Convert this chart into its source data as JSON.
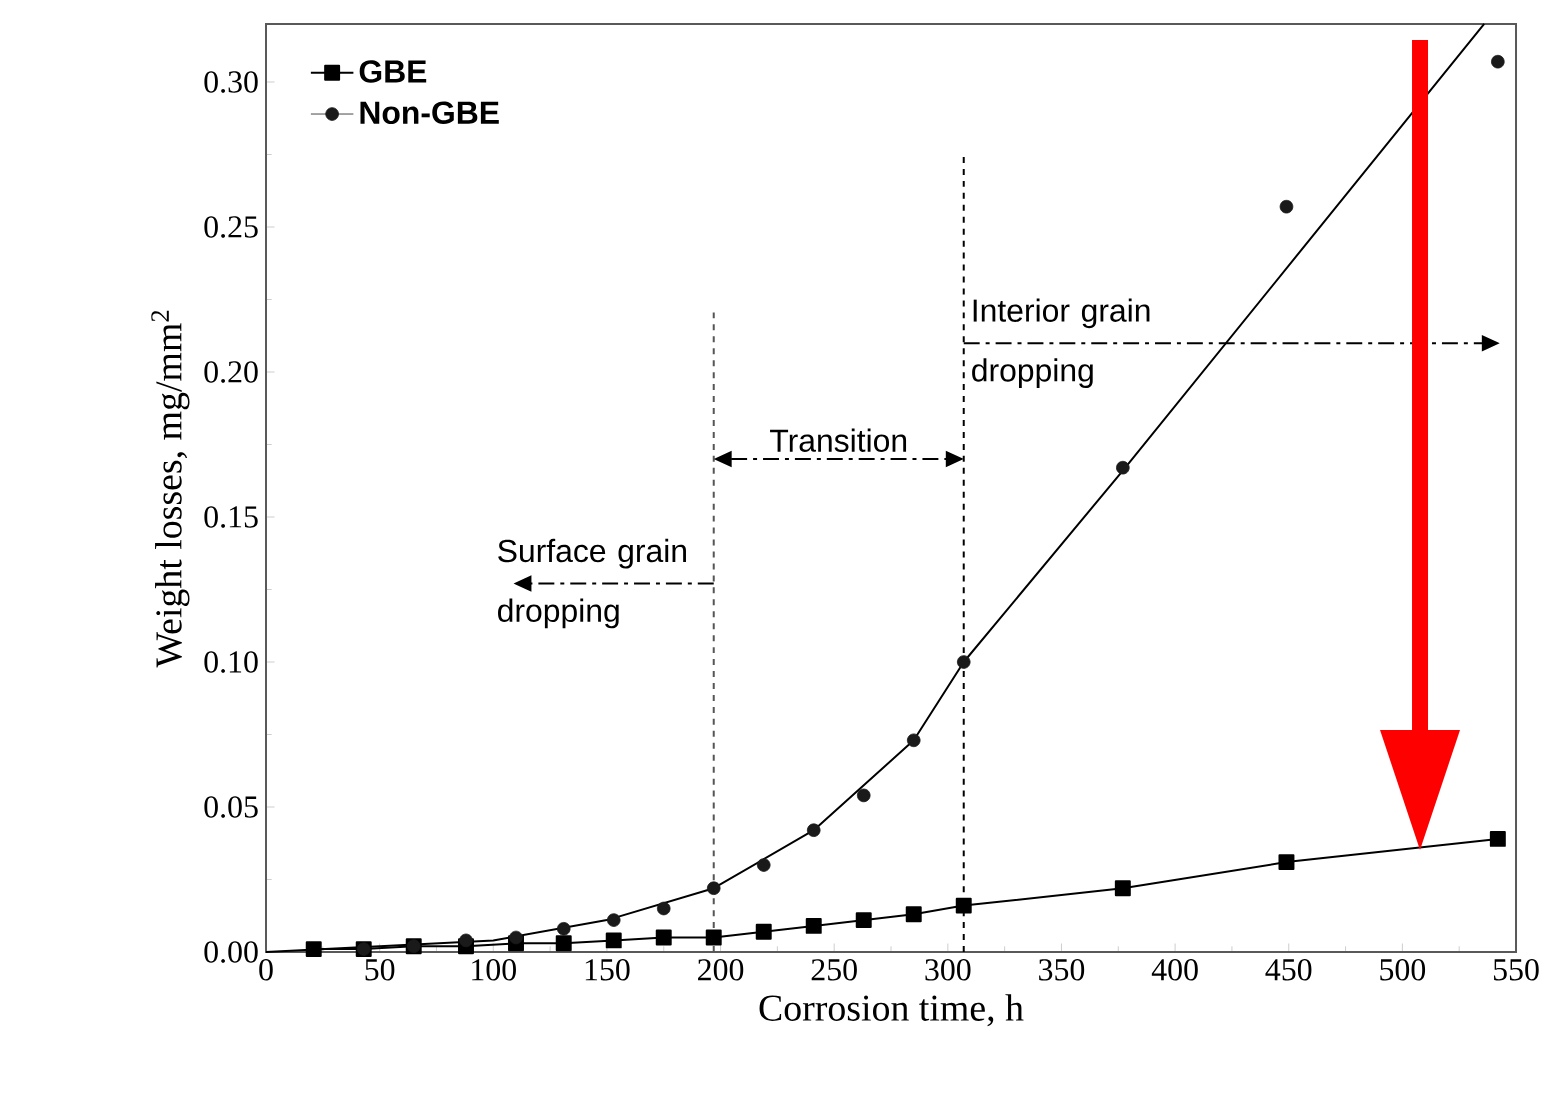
{
  "chart_data": {
    "type": "line",
    "xlabel": "Corrosion time, h",
    "ylabel": "Weight losses, mg/mm$^{2}$",
    "xlim": [
      0,
      550
    ],
    "ylim": [
      0,
      0.32
    ],
    "xticks": [
      0,
      50,
      100,
      150,
      200,
      250,
      300,
      350,
      400,
      450,
      500,
      550
    ],
    "yticks": [
      {
        "value": 0,
        "label": "0.00"
      },
      {
        "value": 0.05,
        "label": "0.05"
      },
      {
        "value": 0.1,
        "label": "0.10"
      },
      {
        "value": 0.15,
        "label": "0.15"
      },
      {
        "value": 0.2,
        "label": "0.20"
      },
      {
        "value": 0.25,
        "label": "0.25"
      },
      {
        "value": 0.3,
        "label": "0.30"
      }
    ],
    "legend": "top left",
    "grid": false,
    "series": [
      {
        "name": "GBE",
        "marker": "square",
        "color": "#000000",
        "x": [
          21,
          43,
          65,
          88,
          110,
          131,
          153,
          175,
          197,
          219,
          241,
          263,
          285,
          307,
          377,
          449,
          542
        ],
        "values": [
          0.001,
          0.001,
          0.002,
          0.002,
          0.003,
          0.003,
          0.004,
          0.005,
          0.005,
          0.007,
          0.009,
          0.011,
          0.013,
          0.016,
          0.022,
          0.031,
          0.039
        ]
      },
      {
        "name": "Non-GBE",
        "type": "scatter",
        "marker": "circle",
        "color": "#1a1a1a",
        "x": [
          43,
          65,
          88,
          110,
          131,
          153,
          175,
          197,
          219,
          241,
          263,
          285,
          307,
          377,
          449,
          542
        ],
        "values": [
          0.001,
          0.002,
          0.004,
          0.005,
          0.008,
          0.011,
          0.015,
          0.022,
          0.03,
          0.042,
          0.054,
          0.073,
          0.1,
          0.167,
          0.257,
          0.307
        ]
      },
      {
        "marker": "none",
        "color": "#000000",
        "x": [
          0,
          100,
          150,
          197,
          241,
          285,
          307,
          377,
          536
        ],
        "values": [
          0,
          0.004,
          0.011,
          0.022,
          0.042,
          0.073,
          0.1,
          0.166,
          0.32
        ]
      }
    ],
    "ref_lines": [
      {
        "axis": "x",
        "value": 197,
        "line_style": "dashed",
        "color": "#555555"
      },
      {
        "axis": "x",
        "value": 307,
        "line_style": "dashed",
        "color": "#000000"
      }
    ],
    "annotations": [
      "Surface grain dropping",
      {
        "text": "Transition",
        "x": 307,
        "y": 0.17
      },
      "Interior grain dropping"
    ]
  }
}
